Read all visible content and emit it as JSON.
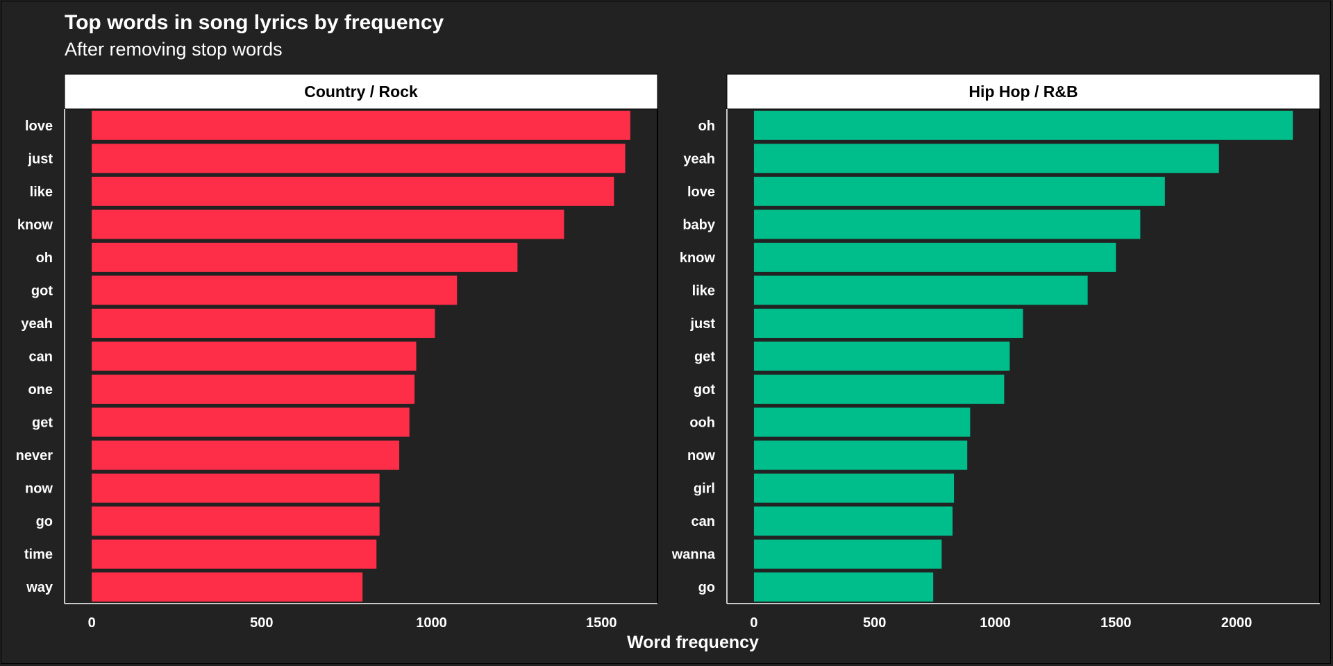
{
  "chart_data": {
    "type": "bar",
    "orientation": "horizontal",
    "title": "Top words in song lyrics by frequency",
    "subtitle": "After removing stop words",
    "xlabel": "Word frequency",
    "ylabel": "",
    "grid": false,
    "legend": "none",
    "background": "#222222",
    "panels": [
      {
        "name": "Country / Rock",
        "color": "#ff2e48",
        "xlim": [
          -80,
          1665
        ],
        "ticks": [
          0,
          500,
          1000,
          1500
        ],
        "categories": [
          "love",
          "just",
          "like",
          "know",
          "oh",
          "got",
          "yeah",
          "can",
          "one",
          "get",
          "never",
          "now",
          "go",
          "time",
          "way"
        ],
        "values": [
          1585,
          1570,
          1537,
          1390,
          1253,
          1075,
          1010,
          955,
          950,
          935,
          905,
          847,
          847,
          838,
          797
        ]
      },
      {
        "name": "Hip Hop / R&B",
        "color": "#00be8b",
        "xlim": [
          -112,
          2345
        ],
        "ticks": [
          0,
          500,
          1000,
          1500,
          2000
        ],
        "categories": [
          "oh",
          "yeah",
          "love",
          "baby",
          "know",
          "like",
          "just",
          "get",
          "got",
          "ooh",
          "now",
          "girl",
          "can",
          "wanna",
          "go"
        ],
        "values": [
          2233,
          1927,
          1703,
          1601,
          1500,
          1383,
          1115,
          1060,
          1037,
          896,
          884,
          829,
          823,
          778,
          743
        ]
      }
    ]
  }
}
